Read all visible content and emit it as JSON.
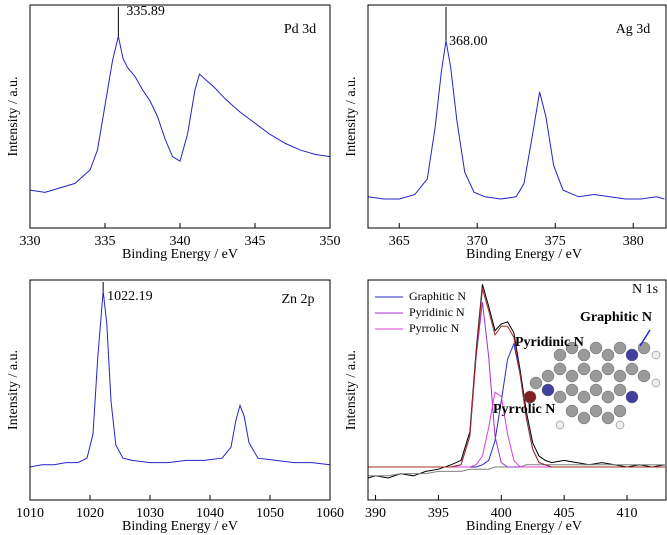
{
  "chart_data": [
    {
      "type": "line",
      "title": "Pd 3d",
      "peak_label": "335.89",
      "xlabel": "Binding Energy / eV",
      "ylabel": "Intensity / a.u.",
      "x": [
        330,
        331,
        332,
        333,
        334,
        334.5,
        335,
        335.5,
        335.89,
        336.2,
        336.5,
        337,
        337.5,
        338,
        338.5,
        339,
        339.5,
        340,
        340.5,
        341,
        341.3,
        341.8,
        342.3,
        343,
        343.5,
        344,
        345,
        346,
        347,
        348,
        349,
        350
      ],
      "series": [
        {
          "color": "#2424c8",
          "values": [
            17,
            16,
            18,
            20,
            26,
            35,
            55,
            75,
            86,
            76,
            72,
            68,
            62,
            57,
            50,
            40,
            32,
            30,
            42,
            62,
            69,
            66,
            63,
            58,
            55,
            52,
            47,
            42,
            38,
            35,
            33,
            32
          ]
        }
      ],
      "xlim": [
        330,
        350
      ],
      "ylim": [
        0,
        100
      ],
      "xticks": [
        330,
        335,
        340,
        345,
        350
      ]
    },
    {
      "type": "line",
      "title": "Ag 3d",
      "peak_label": "368.00",
      "xlabel": "Binding Energy / eV",
      "ylabel": "Intensity / a.u.",
      "x": [
        363,
        364,
        365,
        366,
        366.8,
        367.3,
        367.7,
        368,
        368.3,
        368.7,
        369.2,
        369.8,
        370.5,
        371.5,
        372.5,
        373,
        373.5,
        374,
        374.4,
        374.9,
        375.5,
        376.5,
        377.5,
        378.5,
        379.5,
        380.5,
        381.5,
        382
      ],
      "series": [
        {
          "color": "#2424c8",
          "values": [
            14,
            13,
            13,
            15,
            22,
            45,
            70,
            84,
            72,
            48,
            25,
            16,
            14,
            13,
            14,
            20,
            40,
            61,
            50,
            28,
            17,
            14,
            15,
            14,
            13,
            13,
            14,
            13
          ]
        }
      ],
      "xlim": [
        363,
        382.1
      ],
      "ylim": [
        0,
        100
      ],
      "xticks": [
        365,
        370,
        375,
        380
      ]
    },
    {
      "type": "line",
      "title": "Zn 2p",
      "peak_label": "1022.19",
      "xlabel": "Binding Energy / eV",
      "ylabel": "Intensity / a.u.",
      "x": [
        1010,
        1012,
        1014,
        1016,
        1018,
        1019.5,
        1020.5,
        1021.3,
        1022.19,
        1022.8,
        1023.5,
        1024.3,
        1025.5,
        1027,
        1030,
        1033,
        1036,
        1039,
        1042,
        1043.5,
        1044.3,
        1045,
        1045.7,
        1046.5,
        1048,
        1051,
        1054,
        1057,
        1060
      ],
      "series": [
        {
          "color": "#2424c8",
          "values": [
            15,
            16,
            16,
            17,
            17,
            19,
            30,
            65,
            95,
            80,
            45,
            25,
            19,
            18,
            17,
            17,
            18,
            18,
            19,
            24,
            36,
            43,
            38,
            26,
            19,
            18,
            17,
            17,
            16
          ]
        }
      ],
      "xlim": [
        1010,
        1060
      ],
      "ylim": [
        0,
        100
      ],
      "xticks": [
        1010,
        1020,
        1030,
        1040,
        1050,
        1060
      ]
    },
    {
      "type": "line",
      "title": "N 1s",
      "xlabel": "Binding Energy / eV",
      "ylabel": "Intensity / a.u.",
      "annotations": [
        "Pyridinic N",
        "Pyrrolic N",
        "Graphitic N"
      ],
      "legend": "upper left",
      "x": [
        389.4,
        390,
        391,
        392,
        393,
        394,
        395,
        396,
        396.8,
        397.5,
        398,
        398.5,
        399,
        399.5,
        400,
        400.5,
        401,
        401.5,
        402,
        402.5,
        403,
        403.5,
        404,
        405,
        406,
        407,
        408,
        409,
        410,
        411,
        412,
        413
      ],
      "series": [
        {
          "color": "#000000",
          "values": [
            10,
            11,
            10,
            12,
            11,
            13,
            14,
            16,
            18,
            31,
            68,
            98,
            88,
            77,
            80,
            81,
            76,
            59,
            40,
            26,
            20,
            18,
            17,
            18,
            17,
            16,
            17,
            16,
            15,
            16,
            15,
            16
          ]
        },
        {
          "color": "#808080",
          "values": [
            11,
            11,
            11,
            12,
            12,
            12,
            13,
            13,
            13,
            14,
            14,
            14,
            14,
            15,
            15,
            15,
            15,
            15,
            16,
            16,
            16,
            16,
            16,
            16,
            16,
            16,
            16,
            16,
            16,
            16,
            16,
            16
          ]
        },
        {
          "name": "Graphitic N",
          "color": "#2a2ad0",
          "values": [
            15,
            15,
            15,
            15,
            15,
            15,
            15,
            15,
            15,
            15,
            15,
            16,
            18,
            27,
            45,
            64,
            71,
            57,
            37,
            23,
            17,
            16,
            15,
            15,
            15,
            15,
            15,
            15,
            15,
            15,
            15,
            15
          ]
        },
        {
          "name": "Pyridinic N",
          "color": "#a030c8",
          "values": [
            15,
            15,
            15,
            15,
            15,
            15,
            15,
            15,
            16,
            29,
            65,
            90,
            65,
            29,
            17,
            15,
            15,
            15,
            15,
            15,
            15,
            15,
            15,
            15,
            15,
            15,
            15,
            15,
            15,
            15,
            15,
            15
          ]
        },
        {
          "name": "Pyrrolic N",
          "color": "#e040d0",
          "values": [
            15,
            15,
            15,
            15,
            15,
            15,
            15,
            15,
            15,
            15,
            16,
            20,
            33,
            49,
            47,
            30,
            18,
            15,
            15,
            15,
            15,
            15,
            15,
            15,
            15,
            15,
            15,
            15,
            15,
            15,
            15,
            15
          ]
        },
        {
          "color": "#a0302a",
          "values": [
            15,
            15,
            15,
            15,
            15,
            15,
            15,
            15,
            16,
            29,
            66,
            96,
            86,
            75,
            79,
            79,
            74,
            57,
            37,
            23,
            17,
            16,
            15,
            15,
            15,
            15,
            15,
            15,
            15,
            15,
            15,
            15
          ]
        }
      ],
      "xlim": [
        389.4,
        413.1
      ],
      "ylim": [
        0,
        100
      ],
      "xticks": [
        390,
        395,
        400,
        405,
        410
      ]
    }
  ]
}
